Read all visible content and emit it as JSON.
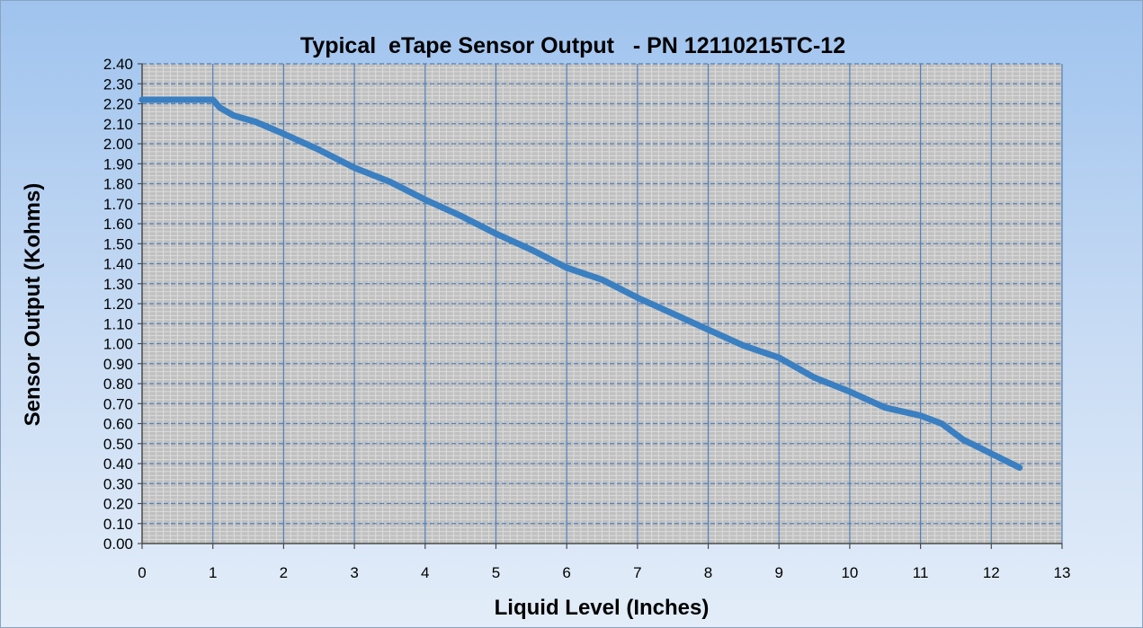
{
  "chart_data": {
    "type": "line",
    "title": "Typical  eTape Sensor Output   - PN 12110215TC-12",
    "xlabel": "Liquid Level (Inches)",
    "ylabel": "Sensor Output (Kohms)",
    "xlim": [
      0,
      13
    ],
    "ylim": [
      0,
      2.4
    ],
    "x_ticks": [
      "0",
      "1",
      "2",
      "3",
      "4",
      "5",
      "6",
      "7",
      "8",
      "9",
      "10",
      "11",
      "12",
      "13"
    ],
    "y_ticks": [
      "0.00",
      "0.10",
      "0.20",
      "0.30",
      "0.40",
      "0.50",
      "0.60",
      "0.70",
      "0.80",
      "0.90",
      "1.00",
      "1.10",
      "1.20",
      "1.30",
      "1.40",
      "1.50",
      "1.60",
      "1.70",
      "1.80",
      "1.90",
      "2.00",
      "2.10",
      "2.20",
      "2.30",
      "2.40"
    ],
    "grid": true,
    "series_color": "#3a7fc1",
    "plot_background": "#c0c0c0",
    "major_grid_color": "#4f81bd",
    "minor_grid_color": "#dcdcdc",
    "series": [
      {
        "x": [
          0,
          0.5,
          1.0,
          1.1,
          1.3,
          1.6,
          2.0,
          2.5,
          3.0,
          3.5,
          4.0,
          4.5,
          5.0,
          5.5,
          6.0,
          6.5,
          7.0,
          7.5,
          8.0,
          8.5,
          9.0,
          9.5,
          10.0,
          10.5,
          11.0,
          11.3,
          11.6,
          12.0,
          12.4
        ],
        "y": [
          2.22,
          2.22,
          2.22,
          2.18,
          2.14,
          2.11,
          2.05,
          1.97,
          1.88,
          1.81,
          1.72,
          1.64,
          1.55,
          1.47,
          1.38,
          1.32,
          1.23,
          1.15,
          1.07,
          0.99,
          0.93,
          0.83,
          0.76,
          0.68,
          0.64,
          0.6,
          0.52,
          0.45,
          0.38
        ]
      }
    ]
  }
}
